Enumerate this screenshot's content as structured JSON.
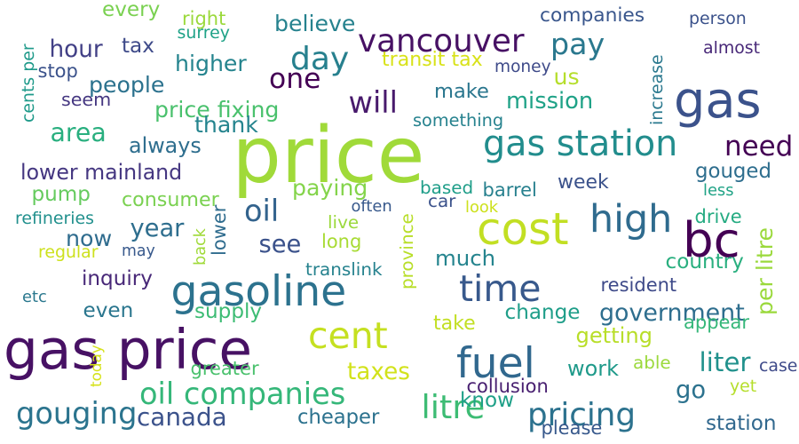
{
  "palette": {
    "background": "#ffffff",
    "purple": "#3f1c5c",
    "indigo": "#414487",
    "blue": "#31688e",
    "teal": "#26828e",
    "green": "#1f9e89",
    "lime": "#6ece58",
    "yellow_green": "#b5de2b"
  },
  "words": [
    {
      "text": "price",
      "color": "#a0da39",
      "rotated": false
    },
    {
      "text": "gas price",
      "color": "#471164",
      "rotated": false
    },
    {
      "text": "gas",
      "color": "#3b528b",
      "rotated": false
    },
    {
      "text": "bc",
      "color": "#440154",
      "rotated": false
    },
    {
      "text": "cost",
      "color": "#c2df23",
      "rotated": false
    },
    {
      "text": "gasoline",
      "color": "#2c728e",
      "rotated": false
    },
    {
      "text": "fuel",
      "color": "#31688e",
      "rotated": false
    },
    {
      "text": "high",
      "color": "#2f6b8e",
      "rotated": false
    },
    {
      "text": "time",
      "color": "#38598c",
      "rotated": false
    },
    {
      "text": "cent",
      "color": "#c5e021",
      "rotated": false
    },
    {
      "text": "vancouver",
      "color": "#471164",
      "rotated": false
    },
    {
      "text": "day",
      "color": "#27808e",
      "rotated": false
    },
    {
      "text": "pay",
      "color": "#2a788e",
      "rotated": false
    },
    {
      "text": "gas station",
      "color": "#228d8d",
      "rotated": false
    },
    {
      "text": "one",
      "color": "#440154",
      "rotated": false
    },
    {
      "text": "will",
      "color": "#481a6c",
      "rotated": false
    },
    {
      "text": "oil",
      "color": "#33638d",
      "rotated": false
    },
    {
      "text": "now",
      "color": "#2f6c8e",
      "rotated": false
    },
    {
      "text": "litre",
      "color": "#3dbc74",
      "rotated": false
    },
    {
      "text": "pricing",
      "color": "#2c728e",
      "rotated": false
    },
    {
      "text": "oil companies",
      "color": "#35b779",
      "rotated": false
    },
    {
      "text": "gouging",
      "color": "#2b748e",
      "rotated": false
    },
    {
      "text": "canada",
      "color": "#3b528b",
      "rotated": false
    },
    {
      "text": "need",
      "color": "#440154",
      "rotated": false
    },
    {
      "text": "area",
      "color": "#29af7f",
      "rotated": false
    },
    {
      "text": "liter",
      "color": "#21918c",
      "rotated": false
    },
    {
      "text": "go",
      "color": "#2c728e",
      "rotated": false
    },
    {
      "text": "government",
      "color": "#2e6e8e",
      "rotated": false
    },
    {
      "text": "increase",
      "color": "#2a788e",
      "rotated": true
    },
    {
      "text": "per litre",
      "color": "#9bd93c",
      "rotated": true
    },
    {
      "text": "people",
      "color": "#2c728e",
      "rotated": false
    },
    {
      "text": "mission",
      "color": "#1fa287",
      "rotated": false
    },
    {
      "text": "make",
      "color": "#2a768e",
      "rotated": false
    },
    {
      "text": "higher",
      "color": "#25848e",
      "rotated": false
    },
    {
      "text": "year",
      "color": "#2e6e8e",
      "rotated": false
    },
    {
      "text": "see",
      "color": "#3b528b",
      "rotated": false
    },
    {
      "text": "much",
      "color": "#25848e",
      "rotated": false
    },
    {
      "text": "change",
      "color": "#1f9e89",
      "rotated": false
    },
    {
      "text": "price fixing",
      "color": "#4ac16d",
      "rotated": false
    },
    {
      "text": "thank",
      "color": "#25848e",
      "rotated": false
    },
    {
      "text": "always",
      "color": "#2e6e8e",
      "rotated": false
    },
    {
      "text": "lower mainland",
      "color": "#453781",
      "rotated": false
    },
    {
      "text": "pump",
      "color": "#65cb5e",
      "rotated": false
    },
    {
      "text": "consumer",
      "color": "#7ad151",
      "rotated": false
    },
    {
      "text": "paying",
      "color": "#84d44b",
      "rotated": false
    },
    {
      "text": "province",
      "color": "#b8de29",
      "rotated": true
    },
    {
      "text": "hour",
      "color": "#424086",
      "rotated": false
    },
    {
      "text": "tax",
      "color": "#3e4a89",
      "rotated": false
    },
    {
      "text": "every",
      "color": "#7ad151",
      "rotated": false
    },
    {
      "text": "believe",
      "color": "#26828e",
      "rotated": false
    },
    {
      "text": "transit tax",
      "color": "#d8e219",
      "rotated": false
    },
    {
      "text": "us",
      "color": "#b5de2b",
      "rotated": false
    },
    {
      "text": "companies",
      "color": "#39568c",
      "rotated": false
    },
    {
      "text": "gouged",
      "color": "#2e6e8e",
      "rotated": false
    },
    {
      "text": "week",
      "color": "#3b528b",
      "rotated": false
    },
    {
      "text": "barrel",
      "color": "#27808e",
      "rotated": false
    },
    {
      "text": "car",
      "color": "#3b528b",
      "rotated": false
    },
    {
      "text": "inquiry",
      "color": "#482878",
      "rotated": false
    },
    {
      "text": "even",
      "color": "#2a768e",
      "rotated": false
    },
    {
      "text": "supply",
      "color": "#3dbc74",
      "rotated": false
    },
    {
      "text": "may",
      "color": "#38598c",
      "rotated": false
    },
    {
      "text": "work",
      "color": "#1f9a8a",
      "rotated": false
    },
    {
      "text": "taxes",
      "color": "#d2e21b",
      "rotated": false
    },
    {
      "text": "cheaper",
      "color": "#2c728e",
      "rotated": false
    },
    {
      "text": "know",
      "color": "#1fa088",
      "rotated": false
    },
    {
      "text": "station",
      "color": "#31688e",
      "rotated": false
    },
    {
      "text": "collusion",
      "color": "#481f70",
      "rotated": false
    },
    {
      "text": "please",
      "color": "#38598c",
      "rotated": false
    },
    {
      "text": "getting",
      "color": "#b8de29",
      "rotated": false
    },
    {
      "text": "take",
      "color": "#c2df23",
      "rotated": false
    },
    {
      "text": "able",
      "color": "#9bd93c",
      "rotated": false
    },
    {
      "text": "appear",
      "color": "#35b779",
      "rotated": false
    },
    {
      "text": "yet",
      "color": "#b5de2b",
      "rotated": false
    },
    {
      "text": "case",
      "color": "#3e4a89",
      "rotated": false
    },
    {
      "text": "resident",
      "color": "#3e4a89",
      "rotated": false
    },
    {
      "text": "country",
      "color": "#29af7f",
      "rotated": false
    },
    {
      "text": "drive",
      "color": "#25ab82",
      "rotated": false
    },
    {
      "text": "less",
      "color": "#20a386",
      "rotated": false
    },
    {
      "text": "based",
      "color": "#1f9e89",
      "rotated": false
    },
    {
      "text": "look",
      "color": "#cde11d",
      "rotated": false
    },
    {
      "text": "often",
      "color": "#38598c",
      "rotated": false
    },
    {
      "text": "live",
      "color": "#9bd93c",
      "rotated": false
    },
    {
      "text": "long",
      "color": "#a8db34",
      "rotated": false
    },
    {
      "text": "translink",
      "color": "#26828e",
      "rotated": false
    },
    {
      "text": "lower",
      "color": "#2f6c8e",
      "rotated": true
    },
    {
      "text": "back",
      "color": "#a0da39",
      "rotated": true
    },
    {
      "text": "money",
      "color": "#3e4a89",
      "rotated": false
    },
    {
      "text": "something",
      "color": "#26828e",
      "rotated": false
    },
    {
      "text": "seem",
      "color": "#453781",
      "rotated": false
    },
    {
      "text": "stop",
      "color": "#3b528b",
      "rotated": false
    },
    {
      "text": "surrey",
      "color": "#1fa287",
      "rotated": false
    },
    {
      "text": "right",
      "color": "#9bd93c",
      "rotated": false
    },
    {
      "text": "cents per",
      "color": "#1f9a8a",
      "rotated": true
    },
    {
      "text": "refineries",
      "color": "#21908d",
      "rotated": false
    },
    {
      "text": "regular",
      "color": "#cde11d",
      "rotated": false
    },
    {
      "text": "etc",
      "color": "#2a788e",
      "rotated": false
    },
    {
      "text": "today",
      "color": "#d5e21a",
      "rotated": true
    },
    {
      "text": "greater",
      "color": "#4ac16d",
      "rotated": false
    },
    {
      "text": "person",
      "color": "#3b528b",
      "rotated": false
    },
    {
      "text": "almost",
      "color": "#482878",
      "rotated": false
    }
  ]
}
